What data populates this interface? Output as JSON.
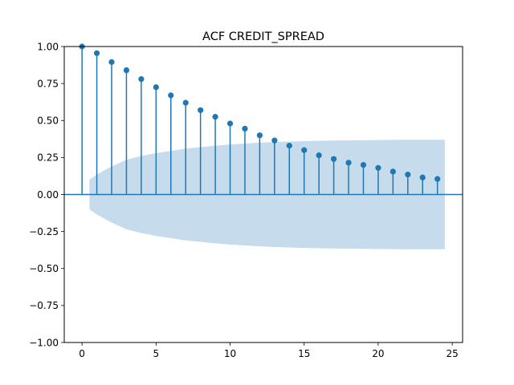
{
  "chart_data": {
    "type": "stem",
    "title": "ACF CREDIT_SPREAD",
    "xlabel": "",
    "ylabel": "",
    "xlim": [
      -1.2,
      25.7
    ],
    "ylim": [
      -1.0,
      1.0
    ],
    "xticks": [
      0,
      5,
      10,
      15,
      20,
      25
    ],
    "xtick_labels": [
      "0",
      "5",
      "10",
      "15",
      "20",
      "25"
    ],
    "yticks": [
      1.0,
      0.75,
      0.5,
      0.25,
      0.0,
      -0.25,
      -0.5,
      -0.75,
      -1.0
    ],
    "ytick_labels": [
      "1.00",
      "0.75",
      "0.50",
      "0.25",
      "0.00",
      "−0.25",
      "−0.50",
      "−0.75",
      "−1.00"
    ],
    "grid": false,
    "legend": "none",
    "lags": [
      0,
      1,
      2,
      3,
      4,
      5,
      6,
      7,
      8,
      9,
      10,
      11,
      12,
      13,
      14,
      15,
      16,
      17,
      18,
      19,
      20,
      21,
      22,
      23,
      24
    ],
    "acf": [
      1.0,
      0.955,
      0.895,
      0.84,
      0.78,
      0.725,
      0.67,
      0.62,
      0.57,
      0.525,
      0.48,
      0.445,
      0.4,
      0.365,
      0.33,
      0.3,
      0.265,
      0.24,
      0.215,
      0.2,
      0.18,
      0.155,
      0.135,
      0.115,
      0.105
    ],
    "confidence_band": {
      "lags": [
        0.5,
        1,
        2,
        3,
        4,
        5,
        6,
        7,
        8,
        9,
        10,
        11,
        12,
        13,
        14,
        15,
        16,
        17,
        18,
        19,
        20,
        21,
        22,
        23,
        24,
        24.5
      ],
      "upper": [
        0.1,
        0.135,
        0.19,
        0.235,
        0.26,
        0.28,
        0.295,
        0.31,
        0.32,
        0.33,
        0.338,
        0.344,
        0.35,
        0.355,
        0.358,
        0.361,
        0.363,
        0.365,
        0.366,
        0.367,
        0.368,
        0.369,
        0.37,
        0.37,
        0.37,
        0.37
      ]
    },
    "colors": {
      "stem": "#1f77b4",
      "marker": "#1f77b4",
      "band": "#c6dbec",
      "zero_line": "#1f77b4",
      "axes": "#000000"
    }
  }
}
